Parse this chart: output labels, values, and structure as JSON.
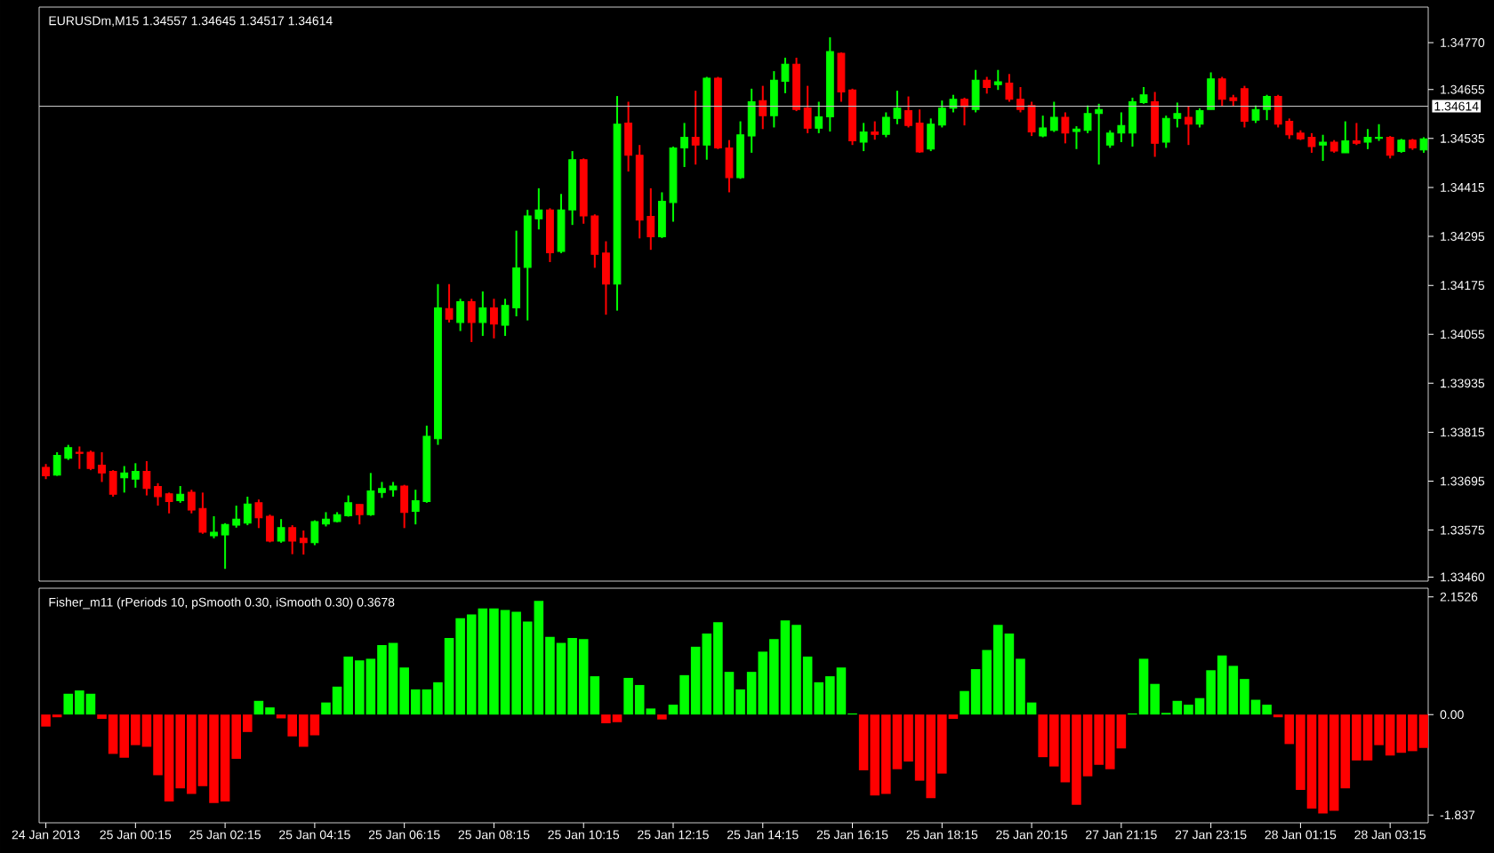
{
  "chart_data": [
    {
      "type": "candlestick",
      "title": "EURUSDm,M15  1.34557 1.34645 1.34517 1.34614",
      "categories": [
        null,
        null,
        null,
        null,
        null,
        null,
        null,
        null,
        null,
        null,
        null,
        null,
        null,
        null,
        null,
        null,
        null,
        null,
        null,
        null,
        null,
        null,
        null,
        null,
        null,
        null,
        null,
        null,
        null,
        null,
        null,
        null,
        null,
        null,
        null,
        null,
        null,
        null,
        null,
        null,
        null,
        null,
        null,
        null,
        null,
        null,
        null,
        null,
        null,
        null,
        null,
        null,
        null,
        null,
        null,
        null,
        null,
        null,
        null,
        null,
        null,
        null,
        null,
        null,
        null,
        null,
        null,
        null,
        null,
        null,
        null,
        null,
        null,
        null,
        null,
        null,
        null,
        null,
        null,
        null,
        null,
        null,
        null,
        null,
        null,
        null,
        null,
        null,
        null,
        null,
        null,
        null,
        null,
        null,
        null,
        null,
        null,
        null,
        null,
        null,
        null,
        null,
        null,
        null,
        null,
        null,
        null,
        null,
        null,
        null,
        null,
        null,
        null,
        null,
        null,
        null,
        null,
        null,
        null,
        null,
        null,
        null,
        null,
        null
      ],
      "ohlc": [
        [
          1.33729,
          1.33737,
          1.337,
          1.33708
        ],
        [
          1.3371,
          1.33766,
          1.33708,
          1.33758
        ],
        [
          1.33751,
          1.33784,
          1.33747,
          1.33777
        ],
        [
          1.33766,
          1.3378,
          1.33725,
          1.33763
        ],
        [
          1.33766,
          1.3377,
          1.33722,
          1.33726
        ],
        [
          1.33734,
          1.33766,
          1.33693,
          1.33715
        ],
        [
          1.33719,
          1.33722,
          1.33657,
          1.33663
        ],
        [
          1.33703,
          1.33732,
          1.33667,
          1.33715
        ],
        [
          1.337,
          1.33739,
          1.33679,
          1.33719
        ],
        [
          1.33719,
          1.33744,
          1.3366,
          1.33677
        ],
        [
          1.33682,
          1.3369,
          1.33635,
          1.33657
        ],
        [
          1.33664,
          1.33667,
          1.33616,
          1.33645
        ],
        [
          1.33647,
          1.33683,
          1.33642,
          1.33663
        ],
        [
          1.33668,
          1.33674,
          1.33616,
          1.33624
        ],
        [
          1.33628,
          1.33667,
          1.33566,
          1.3357
        ],
        [
          1.33561,
          1.33609,
          1.33555,
          1.3357
        ],
        [
          1.33563,
          1.33592,
          1.3348,
          1.33589
        ],
        [
          1.33587,
          1.33635,
          1.33581,
          1.33602
        ],
        [
          1.33592,
          1.33657,
          1.33587,
          1.33639
        ],
        [
          1.33642,
          1.3365,
          1.3358,
          1.33605
        ],
        [
          1.33609,
          1.33613,
          1.33545,
          1.33548
        ],
        [
          1.33548,
          1.33602,
          1.33544,
          1.33581
        ],
        [
          1.33581,
          1.33587,
          1.33516,
          1.33548
        ],
        [
          1.33555,
          1.33574,
          1.33515,
          1.33544
        ],
        [
          1.33544,
          1.33599,
          1.33538,
          1.33596
        ],
        [
          1.3359,
          1.33619,
          1.33584,
          1.33602
        ],
        [
          1.33596,
          1.33619,
          1.33594,
          1.33613
        ],
        [
          1.3361,
          1.3366,
          1.33608,
          1.33642
        ],
        [
          1.33638,
          1.33638,
          1.33589,
          1.33613
        ],
        [
          1.33613,
          1.33715,
          1.3361,
          1.33671
        ],
        [
          1.33667,
          1.33693,
          1.33654,
          1.33677
        ],
        [
          1.33674,
          1.33693,
          1.33657,
          1.33683
        ],
        [
          1.33683,
          1.33686,
          1.3358,
          1.33618
        ],
        [
          1.33621,
          1.33674,
          1.33589,
          1.33647
        ],
        [
          1.33645,
          1.33831,
          1.33642,
          1.33805
        ],
        [
          1.33799,
          1.34178,
          1.33784,
          1.3412
        ],
        [
          1.34118,
          1.34178,
          1.34084,
          1.34092
        ],
        [
          1.34084,
          1.34142,
          1.34063,
          1.34135
        ],
        [
          1.34135,
          1.34142,
          1.34036,
          1.34084
        ],
        [
          1.34084,
          1.3416,
          1.34051,
          1.3412
        ],
        [
          1.3412,
          1.34142,
          1.34045,
          1.3408
        ],
        [
          1.34077,
          1.34142,
          1.34051,
          1.34126
        ],
        [
          1.3412,
          1.34309,
          1.34099,
          1.34218
        ],
        [
          1.34219,
          1.3436,
          1.34089,
          1.34345
        ],
        [
          1.34338,
          1.34413,
          1.34312,
          1.3436
        ],
        [
          1.3436,
          1.34364,
          1.34232,
          1.34255
        ],
        [
          1.34258,
          1.34399,
          1.34254,
          1.3436
        ],
        [
          1.3436,
          1.34504,
          1.34323,
          1.34483
        ],
        [
          1.34483,
          1.34486,
          1.34326,
          1.34345
        ],
        [
          1.34345,
          1.34349,
          1.34218,
          1.34251
        ],
        [
          1.34254,
          1.34283,
          1.34103,
          1.34178
        ],
        [
          1.34178,
          1.34639,
          1.34113,
          1.3457
        ],
        [
          1.34573,
          1.34625,
          1.34454,
          1.34494
        ],
        [
          1.34494,
          1.34519,
          1.3429,
          1.34335
        ],
        [
          1.34344,
          1.34413,
          1.34262,
          1.34294
        ],
        [
          1.34294,
          1.34403,
          1.34291,
          1.34381
        ],
        [
          1.34378,
          1.34515,
          1.34331,
          1.34512
        ],
        [
          1.34512,
          1.34573,
          1.34465,
          1.34538
        ],
        [
          1.34538,
          1.34652,
          1.34471,
          1.34519
        ],
        [
          1.34519,
          1.34686,
          1.34483,
          1.34683
        ],
        [
          1.34683,
          1.34686,
          1.34509,
          1.34512
        ],
        [
          1.34512,
          1.34531,
          1.34403,
          1.34439
        ],
        [
          1.34439,
          1.34577,
          1.34436,
          1.34544
        ],
        [
          1.34541,
          1.34657,
          1.345,
          1.34625
        ],
        [
          1.34628,
          1.34664,
          1.34558,
          1.34591
        ],
        [
          1.34591,
          1.347,
          1.34562,
          1.34678
        ],
        [
          1.34675,
          1.34733,
          1.34646,
          1.34717
        ],
        [
          1.34717,
          1.34733,
          1.34602,
          1.34606
        ],
        [
          1.3461,
          1.34664,
          1.34548,
          1.3456
        ],
        [
          1.3456,
          1.34625,
          1.34548,
          1.34588
        ],
        [
          1.34588,
          1.34783,
          1.34552,
          1.34748
        ],
        [
          1.34744,
          1.34746,
          1.34625,
          1.34649
        ],
        [
          1.34654,
          1.34657,
          1.34519,
          1.34529
        ],
        [
          1.34526,
          1.34573,
          1.34504,
          1.34551
        ],
        [
          1.34551,
          1.34577,
          1.34532,
          1.34545
        ],
        [
          1.34545,
          1.34599,
          1.34538,
          1.34587
        ],
        [
          1.34584,
          1.34652,
          1.3457,
          1.34609
        ],
        [
          1.34603,
          1.34638,
          1.34562,
          1.34567
        ],
        [
          1.34573,
          1.34606,
          1.345,
          1.34502
        ],
        [
          1.34509,
          1.34584,
          1.34504,
          1.3457
        ],
        [
          1.34568,
          1.34628,
          1.34562,
          1.34609
        ],
        [
          1.34609,
          1.34642,
          1.34599,
          1.34631
        ],
        [
          1.34631,
          1.34635,
          1.34567,
          1.34613
        ],
        [
          1.34606,
          1.34703,
          1.34599,
          1.34678
        ],
        [
          1.34678,
          1.34686,
          1.34645,
          1.3466
        ],
        [
          1.34667,
          1.34703,
          1.34654,
          1.34674
        ],
        [
          1.34671,
          1.34693,
          1.34625,
          1.34631
        ],
        [
          1.34631,
          1.34661,
          1.34599,
          1.34606
        ],
        [
          1.34616,
          1.34625,
          1.34541,
          1.34551
        ],
        [
          1.34541,
          1.34591,
          1.34538,
          1.34561
        ],
        [
          1.34555,
          1.34625,
          1.34551,
          1.34587
        ],
        [
          1.34587,
          1.34599,
          1.34523,
          1.34548
        ],
        [
          1.34552,
          1.34565,
          1.34509,
          1.34558
        ],
        [
          1.34555,
          1.34616,
          1.34548,
          1.34596
        ],
        [
          1.34596,
          1.3462,
          1.34471,
          1.34606
        ],
        [
          1.34519,
          1.34555,
          1.34512,
          1.34548
        ],
        [
          1.34548,
          1.34599,
          1.34526,
          1.34567
        ],
        [
          1.34548,
          1.34635,
          1.34515,
          1.34625
        ],
        [
          1.34623,
          1.34661,
          1.3462,
          1.34642
        ],
        [
          1.34625,
          1.34649,
          1.3449,
          1.34523
        ],
        [
          1.34526,
          1.34591,
          1.34512,
          1.34584
        ],
        [
          1.34584,
          1.34623,
          1.34562,
          1.34596
        ],
        [
          1.34587,
          1.34613,
          1.34519,
          1.3457
        ],
        [
          1.3457,
          1.34609,
          1.34562,
          1.34603
        ],
        [
          1.34606,
          1.34697,
          1.34606,
          1.34681
        ],
        [
          1.34681,
          1.34686,
          1.34613,
          1.34631
        ],
        [
          1.34635,
          1.34642,
          1.34613,
          1.34628
        ],
        [
          1.34657,
          1.34664,
          1.34562,
          1.34577
        ],
        [
          1.3458,
          1.34616,
          1.34573,
          1.34606
        ],
        [
          1.34606,
          1.34642,
          1.3458,
          1.34638
        ],
        [
          1.34638,
          1.34642,
          1.34562,
          1.3457
        ],
        [
          1.34577,
          1.34584,
          1.34534,
          1.34544
        ],
        [
          1.34548,
          1.34555,
          1.34531,
          1.34534
        ],
        [
          1.34538,
          1.34548,
          1.345,
          1.34515
        ],
        [
          1.34519,
          1.34544,
          1.3448,
          1.34526
        ],
        [
          1.34526,
          1.34531,
          1.345,
          1.34504
        ],
        [
          1.345,
          1.34577,
          1.345,
          1.34529
        ],
        [
          1.34529,
          1.34573,
          1.34519,
          1.34523
        ],
        [
          1.34526,
          1.34558,
          1.34509,
          1.34538
        ],
        [
          1.34535,
          1.3457,
          1.34529,
          1.34538
        ],
        [
          1.34538,
          1.34541,
          1.34486,
          1.34494
        ],
        [
          1.34503,
          1.34534,
          1.345,
          1.34531
        ],
        [
          1.34531,
          1.34534,
          1.34507,
          1.34512
        ],
        [
          1.34507,
          1.34538,
          1.345,
          1.34534
        ]
      ],
      "colors": [
        "#ff0000",
        "#00ff00",
        "#00ff00",
        "#ff0000",
        "#ff0000",
        "#ff0000",
        "#ff0000",
        "#00ff00",
        "#00ff00",
        "#ff0000",
        "#ff0000",
        "#ff0000",
        "#00ff00",
        "#ff0000",
        "#ff0000",
        "#00ff00",
        "#00ff00",
        "#00ff00",
        "#00ff00",
        "#ff0000",
        "#ff0000",
        "#00ff00",
        "#ff0000",
        "#ff0000",
        "#00ff00",
        "#00ff00",
        "#00ff00",
        "#00ff00",
        "#ff0000",
        "#00ff00",
        "#00ff00",
        "#00ff00",
        "#ff0000",
        "#00ff00",
        "#00ff00",
        "#00ff00",
        "#ff0000",
        "#00ff00",
        "#ff0000",
        "#00ff00",
        "#ff0000",
        "#00ff00",
        "#00ff00",
        "#00ff00",
        "#00ff00",
        "#ff0000",
        "#00ff00",
        "#00ff00",
        "#ff0000",
        "#ff0000",
        "#ff0000",
        "#00ff00",
        "#ff0000",
        "#ff0000",
        "#ff0000",
        "#00ff00",
        "#00ff00",
        "#00ff00",
        "#ff0000",
        "#00ff00",
        "#ff0000",
        "#ff0000",
        "#00ff00",
        "#00ff00",
        "#ff0000",
        "#00ff00",
        "#00ff00",
        "#ff0000",
        "#ff0000",
        "#00ff00",
        "#00ff00",
        "#ff0000",
        "#ff0000",
        "#00ff00",
        "#ff0000",
        "#00ff00",
        "#00ff00",
        "#ff0000",
        "#ff0000",
        "#00ff00",
        "#00ff00",
        "#00ff00",
        "#ff0000",
        "#00ff00",
        "#ff0000",
        "#00ff00",
        "#ff0000",
        "#ff0000",
        "#ff0000",
        "#00ff00",
        "#00ff00",
        "#ff0000",
        "#00ff00",
        "#00ff00",
        "#00ff00",
        "#00ff00",
        "#00ff00",
        "#00ff00",
        "#00ff00",
        "#ff0000",
        "#00ff00",
        "#00ff00",
        "#ff0000",
        "#00ff00",
        "#00ff00",
        "#ff0000",
        "#ff0000",
        "#ff0000",
        "#00ff00",
        "#00ff00",
        "#ff0000",
        "#ff0000",
        "#ff0000",
        "#ff0000",
        "#00ff00",
        "#ff0000",
        "#00ff00",
        "#ff0000",
        "#00ff00",
        "#00ff00",
        "#ff0000",
        "#00ff00",
        "#ff0000",
        "#00ff00"
      ],
      "ylim": [
        1.3345,
        1.34857
      ],
      "yticks": [
        {
          "value": 1.3477,
          "label": "1.34770"
        },
        {
          "value": 1.34655,
          "label": "1.34655"
        },
        {
          "value": 1.34535,
          "label": "1.34535"
        },
        {
          "value": 1.34415,
          "label": "1.34415"
        },
        {
          "value": 1.34295,
          "label": "1.34295"
        },
        {
          "value": 1.34175,
          "label": "1.34175"
        },
        {
          "value": 1.34055,
          "label": "1.34055"
        },
        {
          "value": 1.33935,
          "label": "1.33935"
        },
        {
          "value": 1.33815,
          "label": "1.33815"
        },
        {
          "value": 1.33695,
          "label": "1.33695"
        },
        {
          "value": 1.33575,
          "label": "1.33575"
        },
        {
          "value": 1.3346,
          "label": "1.33460"
        }
      ],
      "ref_lines": [
        {
          "axis": "y",
          "value": 1.34614,
          "label": "1.34614",
          "color": "#c0c0c0"
        }
      ],
      "tick_labels": "y"
    },
    {
      "type": "bar",
      "title": "Fisher_m11  (rPeriods 10, pSmooth 0.30, iSmooth 0.30)  0.3678",
      "categories": [
        "24 Jan 2013",
        null,
        null,
        null,
        null,
        null,
        null,
        null,
        "25 Jan 00:15",
        null,
        null,
        null,
        null,
        null,
        null,
        null,
        "25 Jan 02:15",
        null,
        null,
        null,
        null,
        null,
        null,
        null,
        "25 Jan 04:15",
        null,
        null,
        null,
        null,
        null,
        null,
        null,
        "25 Jan 06:15",
        null,
        null,
        null,
        null,
        null,
        null,
        null,
        "25 Jan 08:15",
        null,
        null,
        null,
        null,
        null,
        null,
        null,
        "25 Jan 10:15",
        null,
        null,
        null,
        null,
        null,
        null,
        null,
        "25 Jan 12:15",
        null,
        null,
        null,
        null,
        null,
        null,
        null,
        "25 Jan 14:15",
        null,
        null,
        null,
        null,
        null,
        null,
        null,
        "25 Jan 16:15",
        null,
        null,
        null,
        null,
        null,
        null,
        null,
        "25 Jan 18:15",
        null,
        null,
        null,
        null,
        null,
        null,
        null,
        "25 Jan 20:15",
        null,
        null,
        null,
        null,
        null,
        null,
        null,
        "27 Jan 21:15",
        null,
        null,
        null,
        null,
        null,
        null,
        null,
        "27 Jan 23:15",
        null,
        null,
        null,
        null,
        null,
        null,
        null,
        "28 Jan 01:15",
        null,
        null,
        null,
        null,
        null,
        null,
        null,
        "28 Jan 03:15",
        null,
        null,
        null
      ],
      "values": [
        -0.22,
        -0.05,
        0.38,
        0.44,
        0.38,
        -0.08,
        -0.72,
        -0.79,
        -0.56,
        -0.59,
        -1.11,
        -1.59,
        -1.35,
        -1.45,
        -1.31,
        -1.62,
        -1.59,
        -0.81,
        -0.32,
        0.25,
        0.13,
        -0.07,
        -0.4,
        -0.59,
        -0.38,
        0.22,
        0.51,
        1.06,
        0.99,
        1.02,
        1.27,
        1.31,
        0.86,
        0.46,
        0.46,
        0.59,
        1.4,
        1.76,
        1.83,
        1.94,
        1.94,
        1.91,
        1.88,
        1.7,
        2.08,
        1.42,
        1.31,
        1.4,
        1.38,
        0.7,
        -0.16,
        -0.14,
        0.67,
        0.54,
        0.11,
        -0.09,
        0.18,
        0.72,
        1.24,
        1.48,
        1.69,
        0.78,
        0.46,
        0.78,
        1.15,
        1.38,
        1.72,
        1.64,
        1.06,
        0.59,
        0.7,
        0.86,
        0.02,
        -1.02,
        -1.48,
        -1.45,
        -1.0,
        -0.86,
        -1.21,
        -1.53,
        -1.08,
        -0.08,
        0.43,
        0.83,
        1.18,
        1.64,
        1.48,
        1.02,
        0.22,
        -0.78,
        -0.95,
        -1.24,
        -1.65,
        -1.13,
        -0.92,
        -1.0,
        -0.62,
        0.02,
        1.02,
        0.56,
        0.03,
        0.25,
        0.18,
        0.3,
        0.81,
        1.08,
        0.89,
        0.65,
        0.27,
        0.18,
        -0.05,
        -0.54,
        -1.38,
        -1.72,
        -1.81,
        -1.76,
        -1.35,
        -0.84,
        -0.84,
        -0.56,
        -0.75,
        -0.7,
        -0.67,
        -0.61
      ],
      "colors": [
        "#ff0000",
        "#ff0000",
        "#00ff00",
        "#00ff00",
        "#00ff00",
        "#ff0000",
        "#ff0000",
        "#ff0000",
        "#ff0000",
        "#ff0000",
        "#ff0000",
        "#ff0000",
        "#ff0000",
        "#ff0000",
        "#ff0000",
        "#ff0000",
        "#ff0000",
        "#ff0000",
        "#ff0000",
        "#00ff00",
        "#00ff00",
        "#ff0000",
        "#ff0000",
        "#ff0000",
        "#ff0000",
        "#00ff00",
        "#00ff00",
        "#00ff00",
        "#00ff00",
        "#00ff00",
        "#00ff00",
        "#00ff00",
        "#00ff00",
        "#00ff00",
        "#00ff00",
        "#00ff00",
        "#00ff00",
        "#00ff00",
        "#00ff00",
        "#00ff00",
        "#00ff00",
        "#00ff00",
        "#00ff00",
        "#00ff00",
        "#00ff00",
        "#00ff00",
        "#00ff00",
        "#00ff00",
        "#00ff00",
        "#00ff00",
        "#ff0000",
        "#ff0000",
        "#00ff00",
        "#00ff00",
        "#00ff00",
        "#ff0000",
        "#00ff00",
        "#00ff00",
        "#00ff00",
        "#00ff00",
        "#00ff00",
        "#00ff00",
        "#00ff00",
        "#00ff00",
        "#00ff00",
        "#00ff00",
        "#00ff00",
        "#00ff00",
        "#00ff00",
        "#00ff00",
        "#00ff00",
        "#00ff00",
        "#00ff00",
        "#ff0000",
        "#ff0000",
        "#ff0000",
        "#ff0000",
        "#ff0000",
        "#ff0000",
        "#ff0000",
        "#ff0000",
        "#ff0000",
        "#00ff00",
        "#00ff00",
        "#00ff00",
        "#00ff00",
        "#00ff00",
        "#00ff00",
        "#00ff00",
        "#ff0000",
        "#ff0000",
        "#ff0000",
        "#ff0000",
        "#ff0000",
        "#ff0000",
        "#ff0000",
        "#ff0000",
        "#00ff00",
        "#00ff00",
        "#00ff00",
        "#00ff00",
        "#00ff00",
        "#00ff00",
        "#00ff00",
        "#00ff00",
        "#00ff00",
        "#00ff00",
        "#00ff00",
        "#00ff00",
        "#00ff00",
        "#ff0000",
        "#ff0000",
        "#ff0000",
        "#ff0000",
        "#ff0000",
        "#ff0000",
        "#ff0000",
        "#ff0000",
        "#ff0000",
        "#ff0000",
        "#ff0000",
        "#ff0000",
        "#ff0000",
        "#ff0000"
      ],
      "ylim": [
        -1.98,
        2.31
      ],
      "yticks": [
        2.1526,
        {
          "value": 0,
          "label": "0.00"
        },
        -1.837
      ]
    }
  ]
}
